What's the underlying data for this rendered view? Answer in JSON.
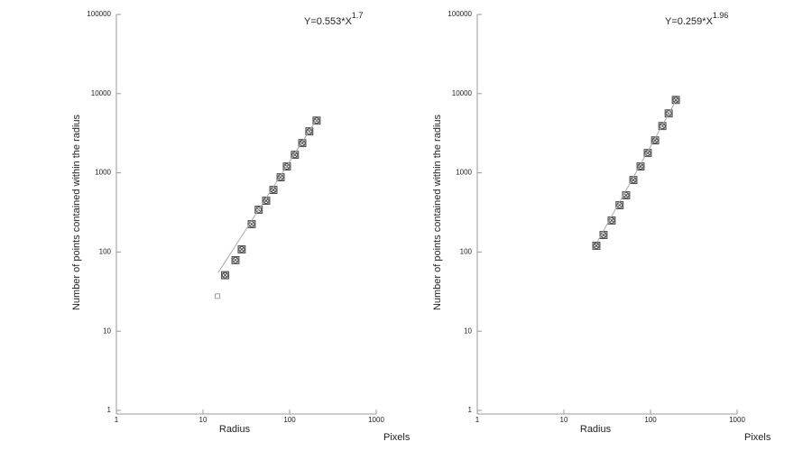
{
  "chart_data": [
    {
      "type": "scatter",
      "log_x": true,
      "log_y": true,
      "x_label": "Radius",
      "x_unit": "Pixels",
      "y_label": "Number of points contained within the radius",
      "annotation": {
        "text": "Y=0.553*X",
        "exponent": "1.7"
      },
      "xlim": [
        1,
        1000
      ],
      "xticks": [
        1,
        10,
        100,
        1000
      ],
      "ylim": [
        1,
        100000
      ],
      "yticks": [
        1,
        10,
        100,
        1000,
        10000,
        100000
      ],
      "series": [
        {
          "kind": "marker",
          "color": "#333",
          "x": [
            18,
            23.7,
            28,
            36.5,
            44,
            53.6,
            65,
            78.7,
            93,
            115,
            140,
            169,
            205
          ],
          "values": [
            51,
            79,
            108,
            225,
            342,
            444,
            608,
            877,
            1202,
            1687,
            2371,
            3334,
            4564
          ]
        },
        {
          "kind": "open",
          "color": "#888",
          "x": [
            14.7
          ],
          "values": [
            27.7
          ]
        },
        {
          "kind": "fit",
          "color": "#aaa",
          "x": [
            15,
            205
          ],
          "values": [
            55,
            4703
          ]
        }
      ]
    },
    {
      "type": "scatter",
      "log_x": true,
      "log_y": true,
      "x_label": "Radius",
      "x_unit": "Pixels",
      "y_label": "Number of points contained within the radius",
      "annotation": {
        "text": "Y=0.259*X",
        "exponent": "1.96"
      },
      "xlim": [
        1,
        1000
      ],
      "xticks": [
        1,
        10,
        100,
        1000
      ],
      "ylim": [
        1,
        100000
      ],
      "yticks": [
        1,
        10,
        100,
        1000,
        10000,
        100000
      ],
      "series": [
        {
          "kind": "marker",
          "color": "#333",
          "x": [
            23.7,
            28.7,
            35.6,
            44,
            52.3,
            63.4,
            76.8,
            93,
            113,
            137,
            162,
            196
          ],
          "values": [
            120,
            164,
            250,
            390,
            520,
            811,
            1202,
            1778,
            2565,
            3899,
            5623,
            8318
          ]
        },
        {
          "kind": "fit",
          "color": "#aaa",
          "x": [
            24,
            196
          ],
          "values": [
            131,
            8063
          ]
        }
      ]
    }
  ]
}
